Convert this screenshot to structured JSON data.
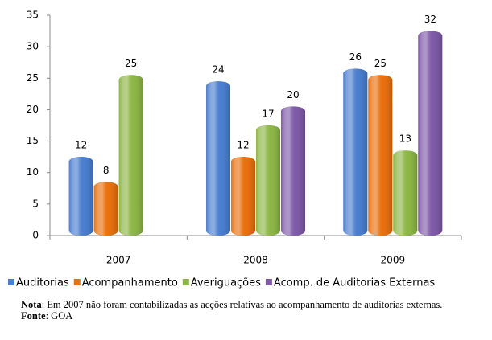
{
  "chart_data": {
    "type": "bar",
    "categories": [
      "2007",
      "2008",
      "2009"
    ],
    "series": [
      {
        "name": "Auditorias",
        "color": "#4a7ecf",
        "values": [
          12,
          24,
          26
        ]
      },
      {
        "name": "Acompanhamento",
        "color": "#e8700f",
        "values": [
          8,
          12,
          25
        ]
      },
      {
        "name": "Averiguações",
        "color": "#8db646",
        "values": [
          25,
          17,
          13
        ]
      },
      {
        "name": "Acomp. de Auditorias Externas",
        "color": "#7e5aa8",
        "values": [
          null,
          20,
          32
        ]
      }
    ],
    "ylim": [
      0,
      35
    ],
    "yticks": [
      0,
      5,
      10,
      15,
      20,
      25,
      30,
      35
    ],
    "grid": false,
    "legend": "bottom",
    "note": {
      "label": "Nota",
      "text": ": Em 2007 não foram contabilizadas as acções relativas ao acompanhamento de auditorias externas."
    },
    "source": {
      "label": "Fonte",
      "text": ": GOA"
    }
  }
}
